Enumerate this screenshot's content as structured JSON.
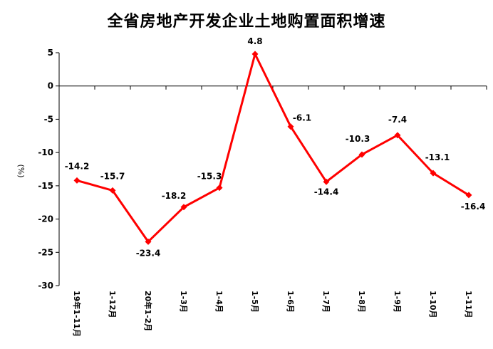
{
  "chart_data": {
    "type": "line",
    "title": "全省房地产开发企业土地购置面积增速",
    "ylabel": "(%)",
    "xlabel": "",
    "ylim": [
      -30,
      5
    ],
    "yticks": [
      5,
      0,
      -5,
      -10,
      -15,
      -20,
      -25,
      -30
    ],
    "grid": false,
    "legend": "none",
    "categories": [
      "19年1-11月",
      "1-12月",
      "20年1-2月",
      "1-3月",
      "1-4月",
      "1-5月",
      "1-6月",
      "1-7月",
      "1-8月",
      "1-9月",
      "1-10月",
      "1-11月"
    ],
    "series": [
      {
        "values": [
          -14.2,
          -15.7,
          -23.4,
          -18.2,
          -15.3,
          4.8,
          -6.1,
          -14.4,
          -10.3,
          -7.4,
          -13.1,
          -16.4
        ],
        "labels": [
          "-14.2",
          "-15.7",
          "-23.4",
          "-18.2",
          "-15.3",
          "4.8",
          "-6.1",
          "-14.4",
          "-10.3",
          "-7.4",
          "-13.1",
          "-16.4"
        ],
        "color": "#ff0000"
      }
    ]
  }
}
